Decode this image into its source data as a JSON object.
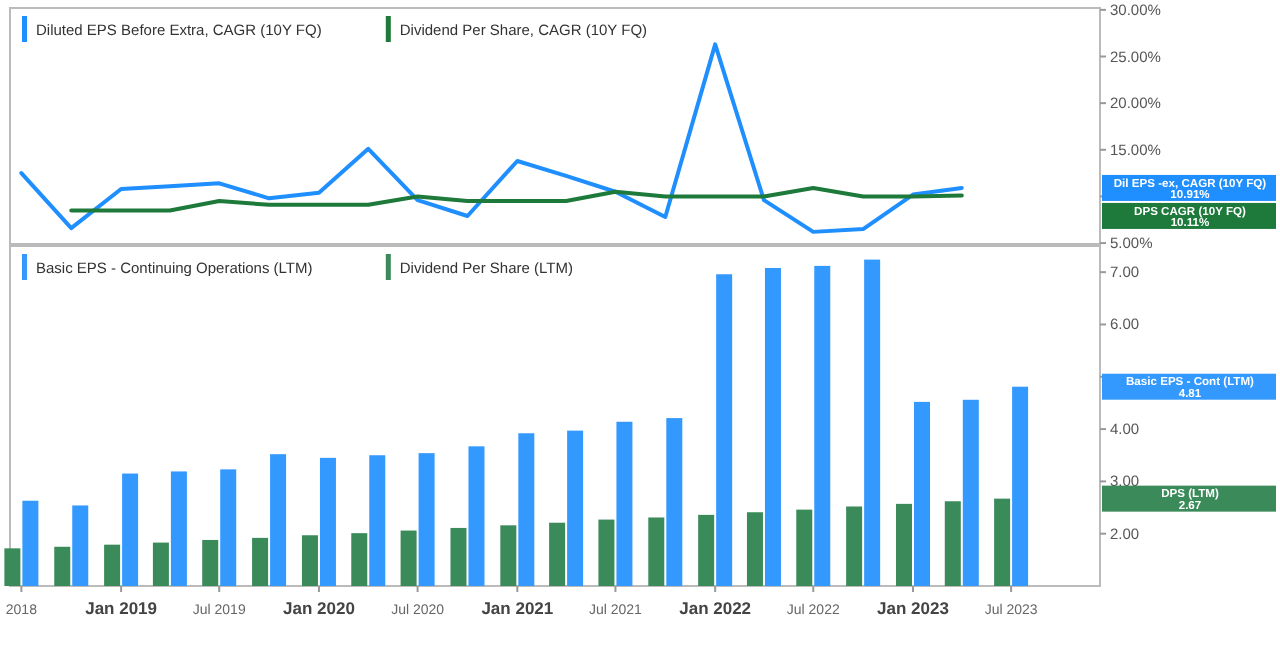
{
  "chart_data": [
    {
      "type": "line",
      "xlim": [
        "2018-06-10",
        "2023-12-12"
      ],
      "ylim": [
        4.9,
        30.2
      ],
      "yticks": [
        {
          "value": 5,
          "label": "5.00%"
        },
        {
          "value": 10,
          "label": null
        },
        {
          "value": 15,
          "label": "15.00%"
        },
        {
          "value": 20,
          "label": "20.00%"
        },
        {
          "value": 25,
          "label": "25.00%"
        },
        {
          "value": 30,
          "label": "30.00%"
        }
      ],
      "tick_labels": "y",
      "legend": "top left",
      "series": [
        {
          "name": "Diluted EPS Before Extra, CAGR (10Y FQ)",
          "color": "#1f8fff",
          "x": [
            "2018-07-01",
            "2018-10-01",
            "2019-01-01",
            "2019-04-01",
            "2019-07-01",
            "2019-10-01",
            "2020-01-01",
            "2020-04-01",
            "2020-07-01",
            "2020-10-01",
            "2021-01-01",
            "2021-04-01",
            "2021-07-01",
            "2021-10-01",
            "2022-01-01",
            "2022-04-01",
            "2022-07-01",
            "2022-10-01",
            "2023-01-01",
            "2023-04-01"
          ],
          "values": [
            12.5,
            6.6,
            10.8,
            11.1,
            11.4,
            9.8,
            10.4,
            15.1,
            9.6,
            7.9,
            13.8,
            12.2,
            10.5,
            7.8,
            26.3,
            9.6,
            6.2,
            6.5,
            10.2,
            10.91
          ]
        },
        {
          "name": "Dividend Per Share, CAGR (10Y FQ)",
          "color": "#1e7a3a",
          "x": [
            "2018-10-01",
            "2019-01-01",
            "2019-04-01",
            "2019-07-01",
            "2019-10-01",
            "2020-01-01",
            "2020-04-01",
            "2020-07-01",
            "2020-10-01",
            "2021-01-01",
            "2021-04-01",
            "2021-07-01",
            "2021-10-01",
            "2022-01-01",
            "2022-04-01",
            "2022-07-01",
            "2022-10-01",
            "2023-01-01",
            "2023-04-01"
          ],
          "values": [
            8.5,
            8.5,
            8.5,
            9.5,
            9.1,
            9.1,
            9.1,
            10.0,
            9.5,
            9.5,
            9.5,
            10.5,
            10.0,
            10.0,
            10.0,
            10.9,
            10.0,
            10.0,
            10.11
          ]
        }
      ],
      "annotations": [
        "Dil EPS -ex, CAGR (10Y FQ)\n10.91%",
        "DPS CAGR (10Y FQ)\n10.11%"
      ]
    },
    {
      "type": "bar",
      "xlim": [
        "2018-06-10",
        "2023-12-12"
      ],
      "ylim": [
        1.0,
        7.5
      ],
      "yticks": [
        {
          "value": 2,
          "label": "2.00"
        },
        {
          "value": 3,
          "label": "3.00"
        },
        {
          "value": 4,
          "label": "4.00"
        },
        {
          "value": 5,
          "label": null
        },
        {
          "value": 6,
          "label": "6.00"
        },
        {
          "value": 7,
          "label": "7.00"
        }
      ],
      "xticks": [
        {
          "value": "2018-07-01",
          "label": "2018"
        },
        {
          "value": "2019-01-01",
          "label": "Jan 2019"
        },
        {
          "value": "2019-07-01",
          "label": "Jul 2019"
        },
        {
          "value": "2020-01-01",
          "label": "Jan 2020"
        },
        {
          "value": "2020-07-01",
          "label": "Jul 2020"
        },
        {
          "value": "2021-01-01",
          "label": "Jan 2021"
        },
        {
          "value": "2021-07-01",
          "label": "Jul 2021"
        },
        {
          "value": "2022-01-01",
          "label": "Jan 2022"
        },
        {
          "value": "2022-07-01",
          "label": "Jul 2022"
        },
        {
          "value": "2023-01-01",
          "label": "Jan 2023"
        },
        {
          "value": "2023-07-01",
          "label": "Jul 2023"
        }
      ],
      "legend": "top left",
      "x": [
        "2018-07-01",
        "2018-10-01",
        "2019-01-01",
        "2019-04-01",
        "2019-07-01",
        "2019-10-01",
        "2020-01-01",
        "2020-04-01",
        "2020-07-01",
        "2020-10-01",
        "2021-01-01",
        "2021-04-01",
        "2021-07-01",
        "2021-10-01",
        "2022-01-01",
        "2022-04-01",
        "2022-07-01",
        "2022-10-01",
        "2023-01-01",
        "2023-04-01",
        "2023-07-01"
      ],
      "series": [
        {
          "name": "Basic EPS - Continuing Operations (LTM)",
          "color": "#3399ff",
          "values": [
            2.63,
            2.54,
            3.15,
            3.19,
            3.23,
            3.52,
            3.45,
            3.5,
            3.54,
            3.67,
            3.92,
            3.97,
            4.14,
            4.21,
            6.96,
            7.08,
            7.12,
            7.24,
            4.52,
            4.56,
            4.81
          ]
        },
        {
          "name": "Dividend Per Share (LTM)",
          "color": "#3a8a5a",
          "values": [
            1.72,
            1.75,
            1.79,
            1.83,
            1.88,
            1.92,
            1.97,
            2.01,
            2.06,
            2.11,
            2.16,
            2.21,
            2.27,
            2.31,
            2.36,
            2.41,
            2.46,
            2.52,
            2.57,
            2.62,
            2.67
          ]
        }
      ],
      "annotations": [
        "Basic EPS - Cont (LTM)\n4.81",
        "DPS (LTM)\n2.67"
      ]
    }
  ]
}
